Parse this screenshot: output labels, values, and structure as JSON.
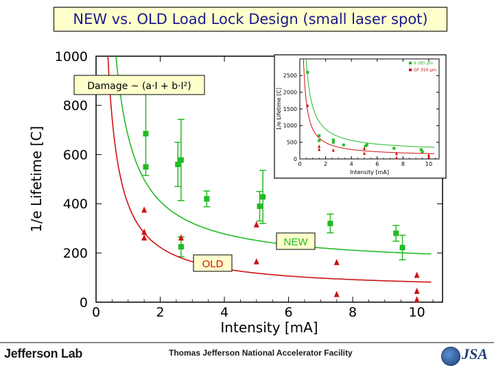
{
  "slide": {
    "title": "NEW vs. OLD Load Lock Design (small laser spot)",
    "footer_org": "Jefferson Lab",
    "footer_facility": "Thomas Jefferson National Accelerator Facility",
    "footer_logo_right": "JSA"
  },
  "colors": {
    "new": "#22bb22",
    "old": "#cc1111",
    "title_bg": "#ffffcc",
    "title_text": "#1a1a8c"
  },
  "chart_data": [
    {
      "type": "scatter",
      "xlabel": "Intensity [mA]",
      "ylabel": "1/e Lifetime [C]",
      "xlim": [
        0,
        10.8
      ],
      "ylim": [
        0,
        1000
      ],
      "xticks": [
        0,
        2,
        4,
        6,
        8,
        10
      ],
      "yticks": [
        0,
        200,
        400,
        600,
        800,
        1000
      ],
      "annotation": "Damage ~ (a·I + b·I²)",
      "series": [
        {
          "name": "NEW",
          "marker": "square",
          "points": [
            {
              "x": 1.55,
              "y": 685,
              "err": 170
            },
            {
              "x": 1.55,
              "y": 550,
              "err": 0
            },
            {
              "x": 2.55,
              "y": 560,
              "err": 90
            },
            {
              "x": 2.65,
              "y": 578,
              "err": 165
            },
            {
              "x": 2.65,
              "y": 225,
              "err": 40
            },
            {
              "x": 3.45,
              "y": 420,
              "err": 32
            },
            {
              "x": 5.1,
              "y": 390,
              "err": 60
            },
            {
              "x": 5.2,
              "y": 428,
              "err": 108
            },
            {
              "x": 7.3,
              "y": 320,
              "err": 38
            },
            {
              "x": 9.35,
              "y": 280,
              "err": 32
            },
            {
              "x": 9.55,
              "y": 222,
              "err": 50
            }
          ],
          "fit": {
            "a": 530,
            "b": 145
          }
        },
        {
          "name": "OLD",
          "marker": "triangle",
          "points": [
            {
              "x": 1.5,
              "y": 375
            },
            {
              "x": 1.5,
              "y": 285
            },
            {
              "x": 1.5,
              "y": 262
            },
            {
              "x": 2.65,
              "y": 262
            },
            {
              "x": 5.0,
              "y": 315
            },
            {
              "x": 5.0,
              "y": 165
            },
            {
              "x": 7.5,
              "y": 162
            },
            {
              "x": 7.5,
              "y": 32
            },
            {
              "x": 10.0,
              "y": 110
            },
            {
              "x": 10.0,
              "y": 45
            },
            {
              "x": 10.0,
              "y": 10
            }
          ],
          "fit": {
            "a": 350,
            "b": 48
          }
        }
      ]
    },
    {
      "type": "scatter",
      "inset": true,
      "xlabel": "Intensity [mA]",
      "ylabel": "1/e Lifetime [C]",
      "xlim": [
        0,
        10.8
      ],
      "ylim": [
        0,
        3000
      ],
      "xticks": [
        0,
        2,
        4,
        6,
        8,
        10
      ],
      "yticks": [
        0,
        500,
        1000,
        1500,
        2000,
        2500
      ],
      "legend": [
        "II  285 μm",
        "GF  350 μm"
      ],
      "series": [
        {
          "name": "II 285 μm",
          "points": [
            {
              "x": 0.6,
              "y": 2600
            },
            {
              "x": 1.5,
              "y": 700
            },
            {
              "x": 1.5,
              "y": 550
            },
            {
              "x": 2.6,
              "y": 570
            },
            {
              "x": 2.6,
              "y": 500
            },
            {
              "x": 3.4,
              "y": 420
            },
            {
              "x": 5.1,
              "y": 390
            },
            {
              "x": 5.2,
              "y": 425
            },
            {
              "x": 7.3,
              "y": 320
            },
            {
              "x": 9.4,
              "y": 280
            },
            {
              "x": 9.5,
              "y": 220
            }
          ],
          "fit": {
            "a": 1350,
            "b": 220
          }
        },
        {
          "name": "GF 350 μm",
          "points": [
            {
              "x": 0.6,
              "y": 1600
            },
            {
              "x": 1.5,
              "y": 375
            },
            {
              "x": 1.5,
              "y": 280
            },
            {
              "x": 2.6,
              "y": 260
            },
            {
              "x": 5.0,
              "y": 310
            },
            {
              "x": 5.0,
              "y": 165
            },
            {
              "x": 7.5,
              "y": 160
            },
            {
              "x": 7.5,
              "y": 35
            },
            {
              "x": 10.0,
              "y": 110
            },
            {
              "x": 10.0,
              "y": 45
            }
          ],
          "fit": {
            "a": 820,
            "b": 80
          }
        }
      ]
    }
  ]
}
